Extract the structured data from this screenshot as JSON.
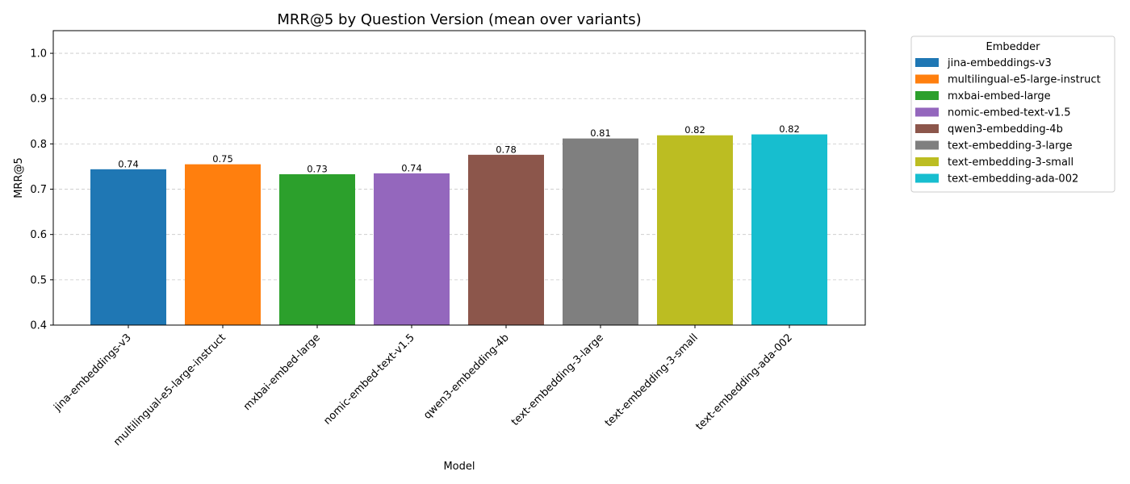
{
  "chart_data": {
    "type": "bar",
    "title": "MRR@5 by Question Version (mean over variants)",
    "xlabel": "Model",
    "ylabel": "MRR@5",
    "ylim": [
      0.4,
      1.05
    ],
    "yticks": [
      0.4,
      0.5,
      0.6,
      0.7,
      0.8,
      0.9,
      1.0
    ],
    "ytick_labels": [
      "0.4",
      "0.5",
      "0.6",
      "0.7",
      "0.8",
      "0.9",
      "1.0"
    ],
    "grid": "y-dashed",
    "categories": [
      "jina-embeddings-v3",
      "multilingual-e5-large-instruct",
      "mxbai-embed-large",
      "nomic-embed-text-v1.5",
      "qwen3-embedding-4b",
      "text-embedding-3-large",
      "text-embedding-3-small",
      "text-embedding-ada-002"
    ],
    "values": [
      0.744,
      0.755,
      0.733,
      0.735,
      0.776,
      0.812,
      0.819,
      0.821
    ],
    "value_labels": [
      "0.74",
      "0.75",
      "0.73",
      "0.74",
      "0.78",
      "0.81",
      "0.82",
      "0.82"
    ],
    "colors": [
      "#1f77b4",
      "#ff7f0e",
      "#2ca02c",
      "#9467bd",
      "#8c564b",
      "#7f7f7f",
      "#bcbd22",
      "#17becf"
    ],
    "legend": {
      "title": "Embedder",
      "placement": "outside-right-top",
      "entries": [
        "jina-embeddings-v3",
        "multilingual-e5-large-instruct",
        "mxbai-embed-large",
        "nomic-embed-text-v1.5",
        "qwen3-embedding-4b",
        "text-embedding-3-large",
        "text-embedding-3-small",
        "text-embedding-ada-002"
      ]
    }
  }
}
